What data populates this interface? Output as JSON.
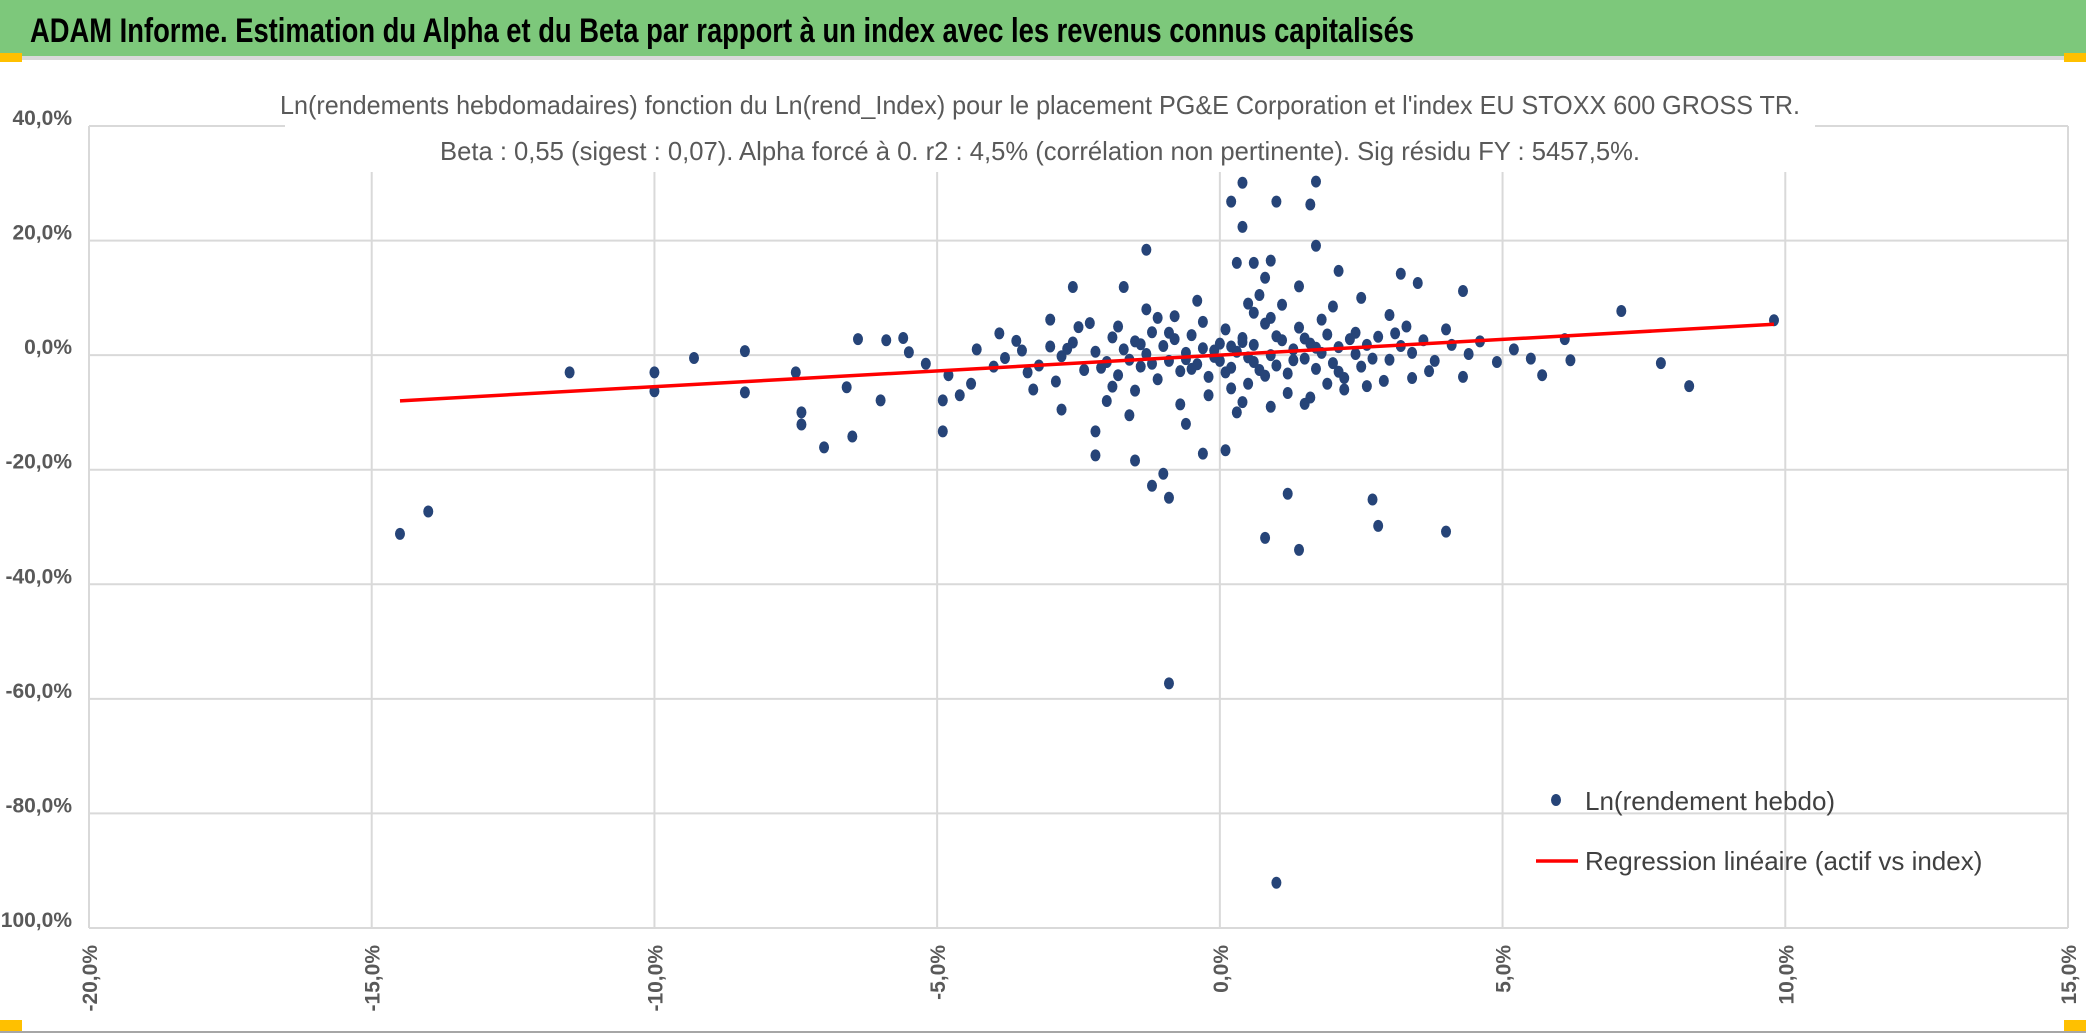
{
  "header": {
    "title": "ADAM Informe. Estimation du Alpha et du Beta par rapport à un index avec les revenus connus capitalisés"
  },
  "colors": {
    "header_bg": "#7dc87b",
    "points": "#264478",
    "regression": "#ff0000",
    "grid": "#d9d9d9",
    "marker_accent": "#ffc000"
  },
  "chart_data": {
    "type": "scatter",
    "title": "Ln(rendements hebdomadaires) fonction du Ln(rend_Index) pour le placement PG&E Corporation et l'index EU STOXX 600 GROSS TR.",
    "subtitle": "Beta : 0,55 (sigest : 0,07). Alpha forcé à 0. r2 : 4,5% (corrélation non pertinente). Sig résidu FY : 5457,5%.",
    "xlim": [
      -20,
      15
    ],
    "ylim": [
      -100,
      40
    ],
    "x_ticks": [
      "-20,0%",
      "-15,0%",
      "-10,0%",
      "-5,0%",
      "0,0%",
      "5,0%",
      "10,0%",
      "15,0%"
    ],
    "y_ticks": [
      "40,0%",
      "20,0%",
      "0,0%",
      "-20,0%",
      "-40,0%",
      "-60,0%",
      "-80,0%",
      "-100,0%"
    ],
    "grid": true,
    "legend_position": "bottom-right",
    "series": [
      {
        "name": "Ln(rendement hebdo)",
        "kind": "scatter",
        "points": [
          [
            -14.5,
            -31.2
          ],
          [
            -14.0,
            -27.3
          ],
          [
            -11.5,
            -3.0
          ],
          [
            -10.0,
            -3.0
          ],
          [
            -10.0,
            -6.3
          ],
          [
            -9.3,
            -0.5
          ],
          [
            -8.4,
            0.7
          ],
          [
            -8.4,
            -6.5
          ],
          [
            -7.5,
            -3.0
          ],
          [
            -7.4,
            -10.0
          ],
          [
            -7.4,
            -12.1
          ],
          [
            -7.0,
            -16.1
          ],
          [
            -6.5,
            -14.2
          ],
          [
            -6.6,
            -5.6
          ],
          [
            -6.4,
            2.8
          ],
          [
            -5.9,
            2.6
          ],
          [
            -6.0,
            -7.9
          ],
          [
            -5.6,
            3.0
          ],
          [
            -4.9,
            -13.3
          ],
          [
            -4.9,
            -7.9
          ],
          [
            -4.6,
            -7.0
          ],
          [
            -2.5,
            4.9
          ],
          [
            -2.6,
            11.9
          ],
          [
            -2.2,
            -17.5
          ],
          [
            -2.2,
            -13.3
          ],
          [
            -1.7,
            11.9
          ],
          [
            -1.5,
            -18.4
          ],
          [
            -1.3,
            18.4
          ],
          [
            -1.2,
            -22.8
          ],
          [
            -1.0,
            -20.7
          ],
          [
            -0.9,
            -24.9
          ],
          [
            -0.9,
            -57.3
          ],
          [
            -0.3,
            -17.2
          ],
          [
            0.1,
            -16.6
          ],
          [
            0.2,
            26.8
          ],
          [
            0.4,
            30.1
          ],
          [
            0.4,
            22.4
          ],
          [
            0.3,
            16.1
          ],
          [
            0.6,
            16.1
          ],
          [
            1.0,
            26.8
          ],
          [
            0.9,
            16.5
          ],
          [
            0.8,
            -31.9
          ],
          [
            1.0,
            -92.1
          ],
          [
            1.2,
            -24.2
          ],
          [
            1.4,
            -34.0
          ],
          [
            1.6,
            26.3
          ],
          [
            1.7,
            30.3
          ],
          [
            1.7,
            19.1
          ],
          [
            2.1,
            14.7
          ],
          [
            2.7,
            -25.2
          ],
          [
            2.8,
            -29.8
          ],
          [
            3.2,
            14.2
          ],
          [
            3.5,
            12.6
          ],
          [
            4.0,
            -30.8
          ],
          [
            4.3,
            11.2
          ],
          [
            6.2,
            -0.9
          ],
          [
            6.1,
            2.8
          ],
          [
            7.1,
            7.7
          ],
          [
            7.8,
            -1.4
          ],
          [
            8.3,
            -5.4
          ],
          [
            9.8,
            6.1
          ],
          [
            5.7,
            -3.5
          ],
          [
            5.2,
            1.0
          ],
          [
            4.9,
            -1.2
          ],
          [
            4.6,
            2.4
          ],
          [
            5.5,
            -0.6
          ],
          [
            4.0,
            4.5
          ],
          [
            3.7,
            -2.8
          ],
          [
            3.0,
            7.0
          ],
          [
            2.5,
            10.0
          ],
          [
            2.0,
            8.5
          ],
          [
            1.4,
            12.0
          ],
          [
            0.8,
            13.5
          ],
          [
            0.5,
            9.0
          ],
          [
            -0.4,
            9.5
          ],
          [
            -1.1,
            6.5
          ],
          [
            -1.8,
            5.0
          ],
          [
            -3.0,
            6.2
          ],
          [
            -3.6,
            2.5
          ],
          [
            -4.0,
            -2.0
          ],
          [
            -4.3,
            1.0
          ],
          [
            -4.8,
            -3.5
          ],
          [
            -5.2,
            -1.5
          ],
          [
            -5.5,
            0.5
          ],
          [
            -3.3,
            -6.0
          ],
          [
            -2.8,
            -9.5
          ],
          [
            -2.0,
            -8.0
          ],
          [
            -1.6,
            -10.5
          ],
          [
            -0.6,
            -12.0
          ],
          [
            0.3,
            -10.0
          ],
          [
            0.9,
            -9.0
          ],
          [
            1.5,
            -8.5
          ],
          [
            2.2,
            -6.0
          ],
          [
            2.9,
            -4.5
          ],
          [
            3.4,
            -4.0
          ],
          [
            4.3,
            -3.8
          ],
          [
            -3.8,
            -0.5
          ],
          [
            -3.5,
            0.8
          ],
          [
            -3.2,
            -1.8
          ],
          [
            -3.0,
            1.5
          ],
          [
            -2.8,
            -0.2
          ],
          [
            -2.6,
            2.2
          ],
          [
            -2.4,
            -2.6
          ],
          [
            -2.2,
            0.6
          ],
          [
            -2.0,
            -1.2
          ],
          [
            -1.9,
            3.1
          ],
          [
            -1.8,
            -3.5
          ],
          [
            -1.7,
            1.0
          ],
          [
            -1.6,
            -0.8
          ],
          [
            -1.5,
            2.4
          ],
          [
            -1.4,
            -2.0
          ],
          [
            -1.3,
            0.2
          ],
          [
            -1.2,
            4.0
          ],
          [
            -1.1,
            -4.2
          ],
          [
            -1.0,
            1.6
          ],
          [
            -0.9,
            -1.0
          ],
          [
            -0.8,
            2.8
          ],
          [
            -0.7,
            -2.8
          ],
          [
            -0.6,
            0.4
          ],
          [
            -0.5,
            3.5
          ],
          [
            -0.4,
            -1.6
          ],
          [
            -0.3,
            1.2
          ],
          [
            -0.2,
            -3.8
          ],
          [
            -0.1,
            0.8
          ],
          [
            0.0,
            2.0
          ],
          [
            0.0,
            -1.0
          ],
          [
            0.1,
            4.5
          ],
          [
            0.2,
            -2.2
          ],
          [
            0.3,
            0.6
          ],
          [
            0.4,
            3.0
          ],
          [
            0.5,
            -0.4
          ],
          [
            0.5,
            -5.0
          ],
          [
            0.6,
            1.8
          ],
          [
            0.7,
            -2.6
          ],
          [
            0.8,
            5.5
          ],
          [
            0.9,
            0.0
          ],
          [
            1.0,
            -1.8
          ],
          [
            1.1,
            2.6
          ],
          [
            1.2,
            -3.2
          ],
          [
            1.3,
            1.0
          ],
          [
            1.4,
            4.8
          ],
          [
            1.5,
            -0.6
          ],
          [
            1.6,
            2.0
          ],
          [
            1.7,
            -2.4
          ],
          [
            1.8,
            0.4
          ],
          [
            1.9,
            3.6
          ],
          [
            2.0,
            -1.4
          ],
          [
            2.1,
            1.4
          ],
          [
            2.2,
            -4.0
          ],
          [
            2.3,
            2.8
          ],
          [
            2.4,
            0.2
          ],
          [
            2.5,
            -2.0
          ],
          [
            2.6,
            1.8
          ],
          [
            2.8,
            3.2
          ],
          [
            3.0,
            -0.8
          ],
          [
            3.2,
            1.6
          ],
          [
            3.4,
            0.4
          ],
          [
            3.6,
            2.6
          ],
          [
            3.8,
            -1.0
          ],
          [
            4.1,
            1.8
          ],
          [
            4.4,
            0.2
          ],
          [
            -2.9,
            -4.6
          ],
          [
            -2.3,
            5.6
          ],
          [
            -1.5,
            -6.2
          ],
          [
            -0.8,
            6.8
          ],
          [
            -0.2,
            -7.0
          ],
          [
            0.6,
            7.4
          ],
          [
            1.2,
            -6.6
          ],
          [
            1.8,
            6.2
          ],
          [
            2.6,
            -5.4
          ],
          [
            3.3,
            5.0
          ],
          [
            -3.9,
            3.8
          ],
          [
            -4.4,
            -5.0
          ],
          [
            -0.3,
            5.8
          ],
          [
            0.2,
            -5.8
          ],
          [
            0.7,
            10.5
          ],
          [
            1.1,
            8.8
          ],
          [
            -0.7,
            -8.6
          ],
          [
            0.4,
            -8.2
          ],
          [
            1.6,
            -7.4
          ],
          [
            -1.3,
            8.0
          ],
          [
            -2.7,
            1.1
          ],
          [
            -2.1,
            -2.2
          ],
          [
            -1.4,
            1.9
          ],
          [
            -0.9,
            3.9
          ],
          [
            -0.5,
            -2.4
          ],
          [
            -0.1,
            -0.3
          ],
          [
            0.2,
            1.5
          ],
          [
            0.6,
            -1.2
          ],
          [
            1.0,
            3.3
          ],
          [
            1.3,
            -0.9
          ],
          [
            1.7,
            1.3
          ],
          [
            2.1,
            -2.9
          ],
          [
            2.4,
            3.9
          ],
          [
            2.7,
            -0.6
          ],
          [
            0.1,
            -3.0
          ],
          [
            0.4,
            2.3
          ],
          [
            0.8,
            -3.6
          ],
          [
            1.5,
            2.9
          ],
          [
            -0.6,
            -0.7
          ],
          [
            -1.2,
            -1.5
          ],
          [
            0.9,
            6.5
          ],
          [
            1.9,
            -5.0
          ],
          [
            -1.9,
            -5.5
          ],
          [
            3.1,
            3.8
          ],
          [
            -3.4,
            -3.0
          ]
        ]
      },
      {
        "name": "Regression linéaire (actif vs index)",
        "kind": "line",
        "slope": 0.55,
        "intercept": 0,
        "x_range": [
          -14.5,
          9.8
        ]
      }
    ]
  }
}
